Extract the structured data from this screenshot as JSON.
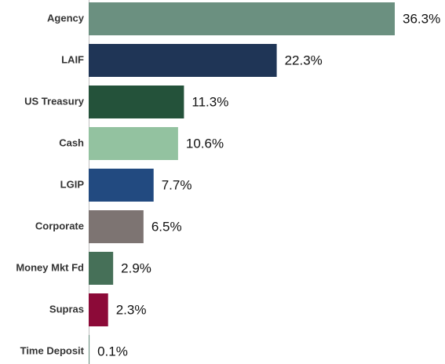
{
  "chart_data": {
    "type": "bar",
    "orientation": "horizontal",
    "categories": [
      "Agency",
      "LAIF",
      "US Treasury",
      "Cash",
      "LGIP",
      "Corporate",
      "Money Mkt Fd",
      "Supras",
      "Time Deposit"
    ],
    "values": [
      36.3,
      22.3,
      11.3,
      10.6,
      7.7,
      6.5,
      2.9,
      2.3,
      0.1
    ],
    "value_labels": [
      "36.3%",
      "22.3%",
      "11.3%",
      "10.6%",
      "7.7%",
      "6.5%",
      "2.9%",
      "2.3%",
      "0.1%"
    ],
    "colors": [
      "#6b9080",
      "#1f3556",
      "#24523a",
      "#93c2a0",
      "#224a80",
      "#7d7472",
      "#467058",
      "#8c0a38",
      "#6b9080"
    ]
  }
}
